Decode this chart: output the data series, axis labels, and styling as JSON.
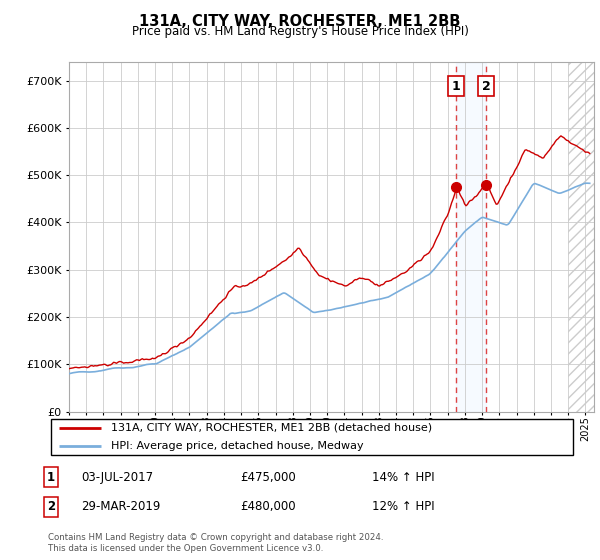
{
  "title": "131A, CITY WAY, ROCHESTER, ME1 2BB",
  "subtitle": "Price paid vs. HM Land Registry's House Price Index (HPI)",
  "ytick_values": [
    0,
    100000,
    200000,
    300000,
    400000,
    500000,
    600000,
    700000
  ],
  "ylim": [
    0,
    740000
  ],
  "legend_line1": "131A, CITY WAY, ROCHESTER, ME1 2BB (detached house)",
  "legend_line2": "HPI: Average price, detached house, Medway",
  "annotation1_label": "1",
  "annotation1_date": "03-JUL-2017",
  "annotation1_price": "£475,000",
  "annotation1_hpi": "14% ↑ HPI",
  "annotation2_label": "2",
  "annotation2_date": "29-MAR-2019",
  "annotation2_price": "£480,000",
  "annotation2_hpi": "12% ↑ HPI",
  "footer": "Contains HM Land Registry data © Crown copyright and database right 2024.\nThis data is licensed under the Open Government Licence v3.0.",
  "hpi_color": "#7aaedc",
  "price_color": "#cc0000",
  "vline_color": "#dd4444",
  "shade_color": "#ddeeff",
  "annotation_box_color": "#cc0000",
  "grid_color": "#cccccc",
  "sale1_x": 2017.503,
  "sale1_y": 475000,
  "sale2_x": 2019.247,
  "sale2_y": 480000,
  "xlim": [
    1995.0,
    2025.5
  ],
  "hatch_start": 2024.0
}
